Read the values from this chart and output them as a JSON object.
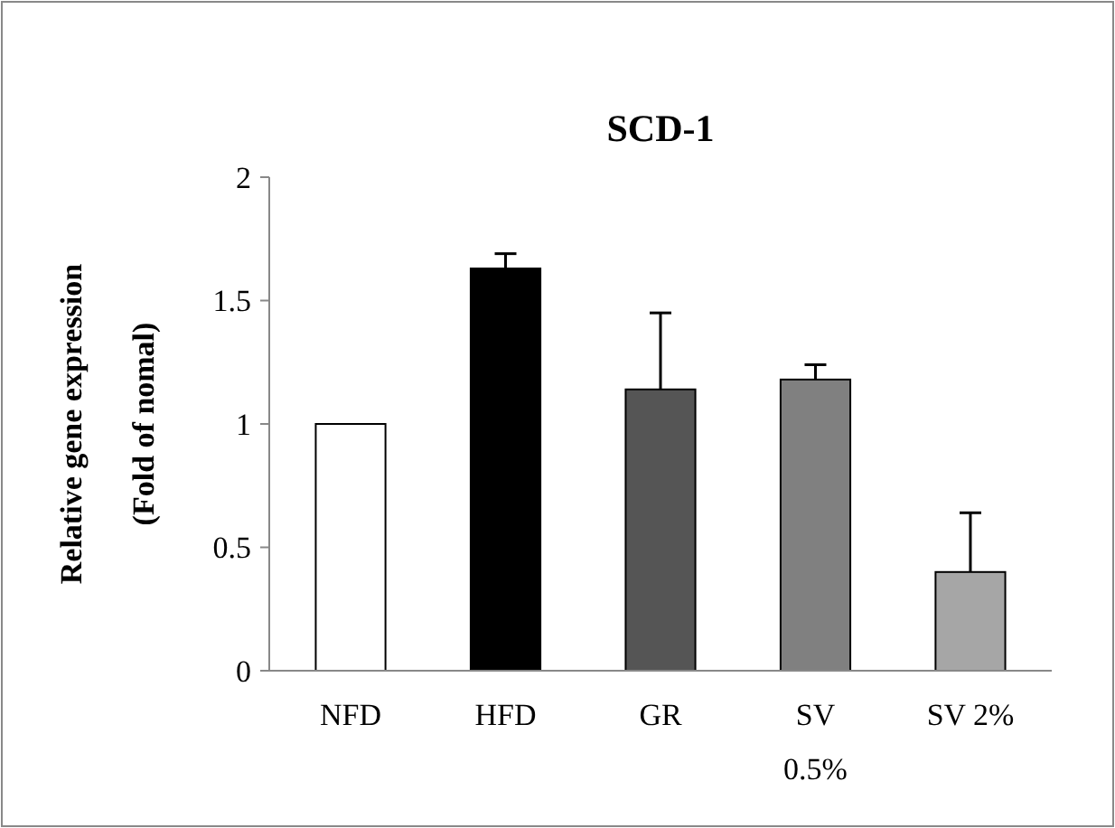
{
  "chart_data": {
    "type": "bar",
    "title": "SCD-1",
    "ylabel": "Relative gene expression\n(Fold of nomal)",
    "categories": [
      "NFD",
      "HFD",
      "GR",
      "SV 0.5%",
      "SV 2%"
    ],
    "values": [
      1.0,
      1.63,
      1.14,
      1.18,
      0.4
    ],
    "colors": [
      "#ffffff",
      "#000000",
      "#555555",
      "#808080",
      "#a6a6a6"
    ],
    "errors": [
      null,
      [
        1.63,
        1.69
      ],
      [
        1.14,
        1.45
      ],
      [
        1.18,
        1.24
      ],
      [
        0.4,
        0.64
      ]
    ],
    "ylim": [
      0,
      2
    ],
    "yticks": [
      0,
      {
        "value": 0.5,
        "label": "0.5"
      },
      1,
      {
        "value": 1.5,
        "label": "1.5"
      },
      2
    ],
    "grid": false
  }
}
